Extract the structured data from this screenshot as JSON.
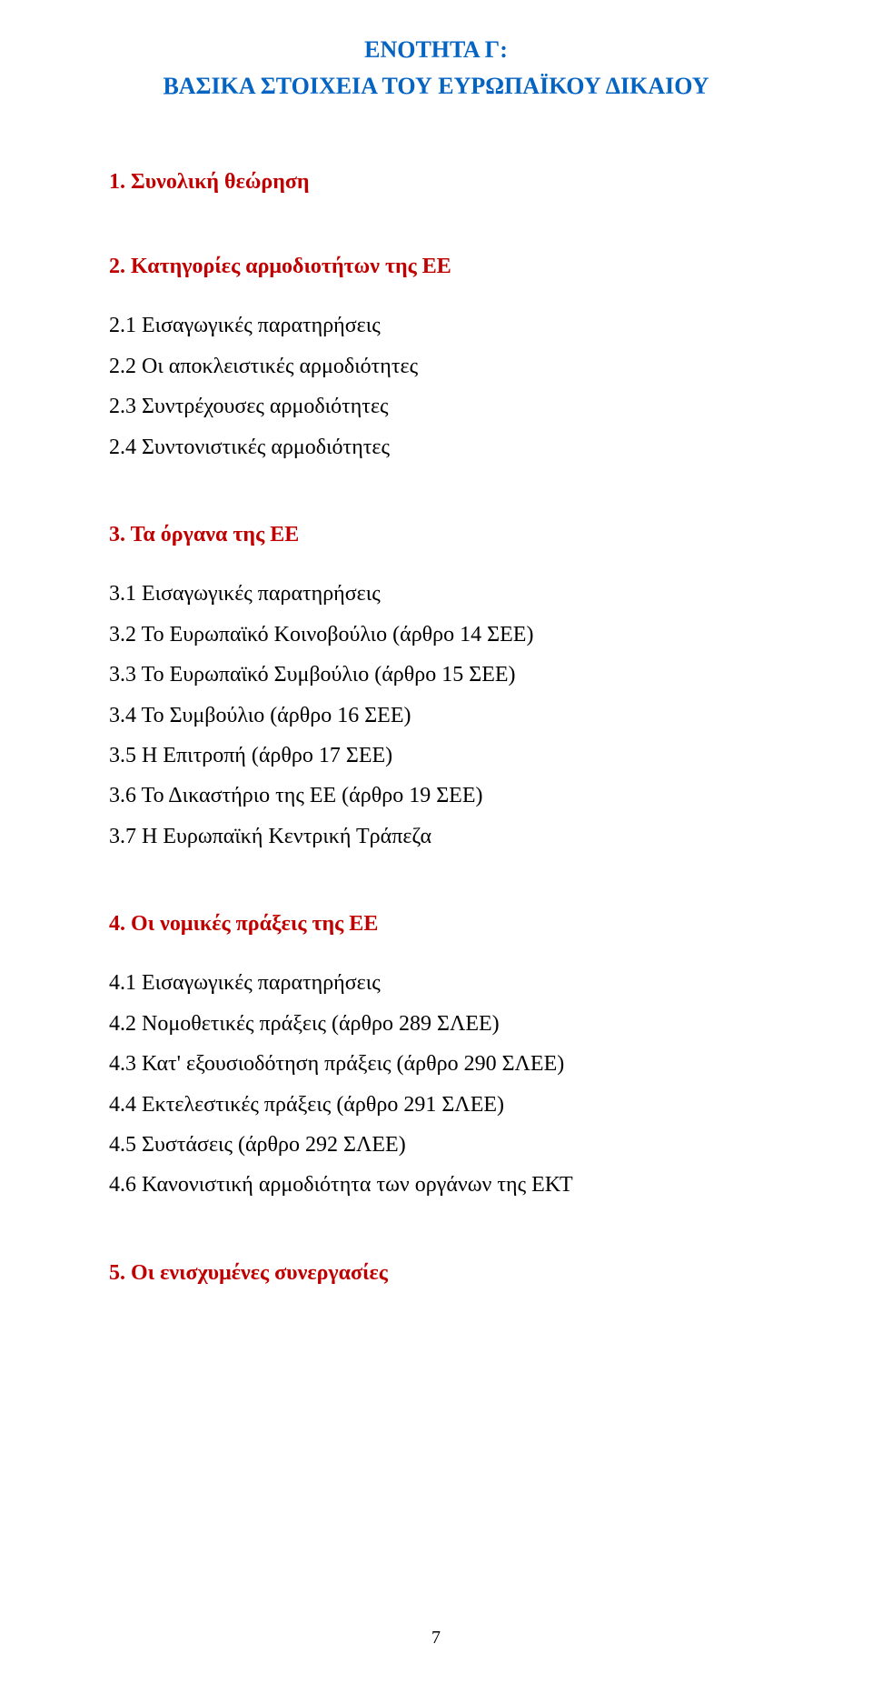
{
  "title": {
    "line1": "ΕΝΟΤΗΤΑ Γ:",
    "line2": "ΒΑΣΙΚΑ ΣΤΟΙΧΕΙΑ ΤΟΥ ΕΥΡΩΠΑΪΚΟΥ ΔΙΚΑΙΟΥ"
  },
  "sections": [
    {
      "head": "1. Συνολική θεώρηση",
      "items": []
    },
    {
      "head": "2. Κατηγορίες αρμοδιοτήτων της ΕΕ",
      "items": [
        "2.1 Εισαγωγικές παρατηρήσεις",
        "2.2 Οι αποκλειστικές αρμοδιότητες",
        "2.3 Συντρέχουσες αρμοδιότητες",
        "2.4 Συντονιστικές αρμοδιότητες"
      ]
    },
    {
      "head": "3. Τα όργανα της ΕΕ",
      "items": [
        "3.1 Εισαγωγικές παρατηρήσεις",
        "3.2 Το Ευρωπαϊκό Κοινοβούλιο (άρθρο 14 ΣΕΕ)",
        "3.3 Το Ευρωπαϊκό Συμβούλιο (άρθρο 15 ΣΕΕ)",
        "3.4 Το Συμβούλιο (άρθρο 16 ΣΕΕ)",
        "3.5 Η Επιτροπή (άρθρο 17 ΣΕΕ)",
        "3.6 Το Δικαστήριο της ΕΕ (άρθρο 19 ΣΕΕ)",
        "3.7 Η Ευρωπαϊκή Κεντρική Τράπεζα"
      ]
    },
    {
      "head": "4. Οι νομικές πράξεις της ΕΕ",
      "items": [
        "4.1 Εισαγωγικές παρατηρήσεις",
        "4.2 Νομοθετικές πράξεις (άρθρο 289 ΣΛΕΕ)",
        "4.3 Κατ' εξουσιοδότηση πράξεις (άρθρο 290 ΣΛΕΕ)",
        "4.4 Εκτελεστικές πράξεις (άρθρο 291 ΣΛΕΕ)",
        "4.5 Συστάσεις (άρθρο 292 ΣΛΕΕ)",
        "4.6 Κανονιστική αρμοδιότητα των οργάνων της ΕΚΤ"
      ]
    },
    {
      "head": "5. Οι ενισχυμένες συνεργασίες",
      "items": []
    }
  ],
  "pageNumber": "7",
  "colors": {
    "title": "#0563c1",
    "sectionHead": "#c00000",
    "body": "#000000",
    "background": "#ffffff"
  },
  "typography": {
    "title_fontsize": 26,
    "section_head_fontsize": 24,
    "body_fontsize": 24,
    "page_number_fontsize": 20,
    "font_family": "Times New Roman"
  }
}
